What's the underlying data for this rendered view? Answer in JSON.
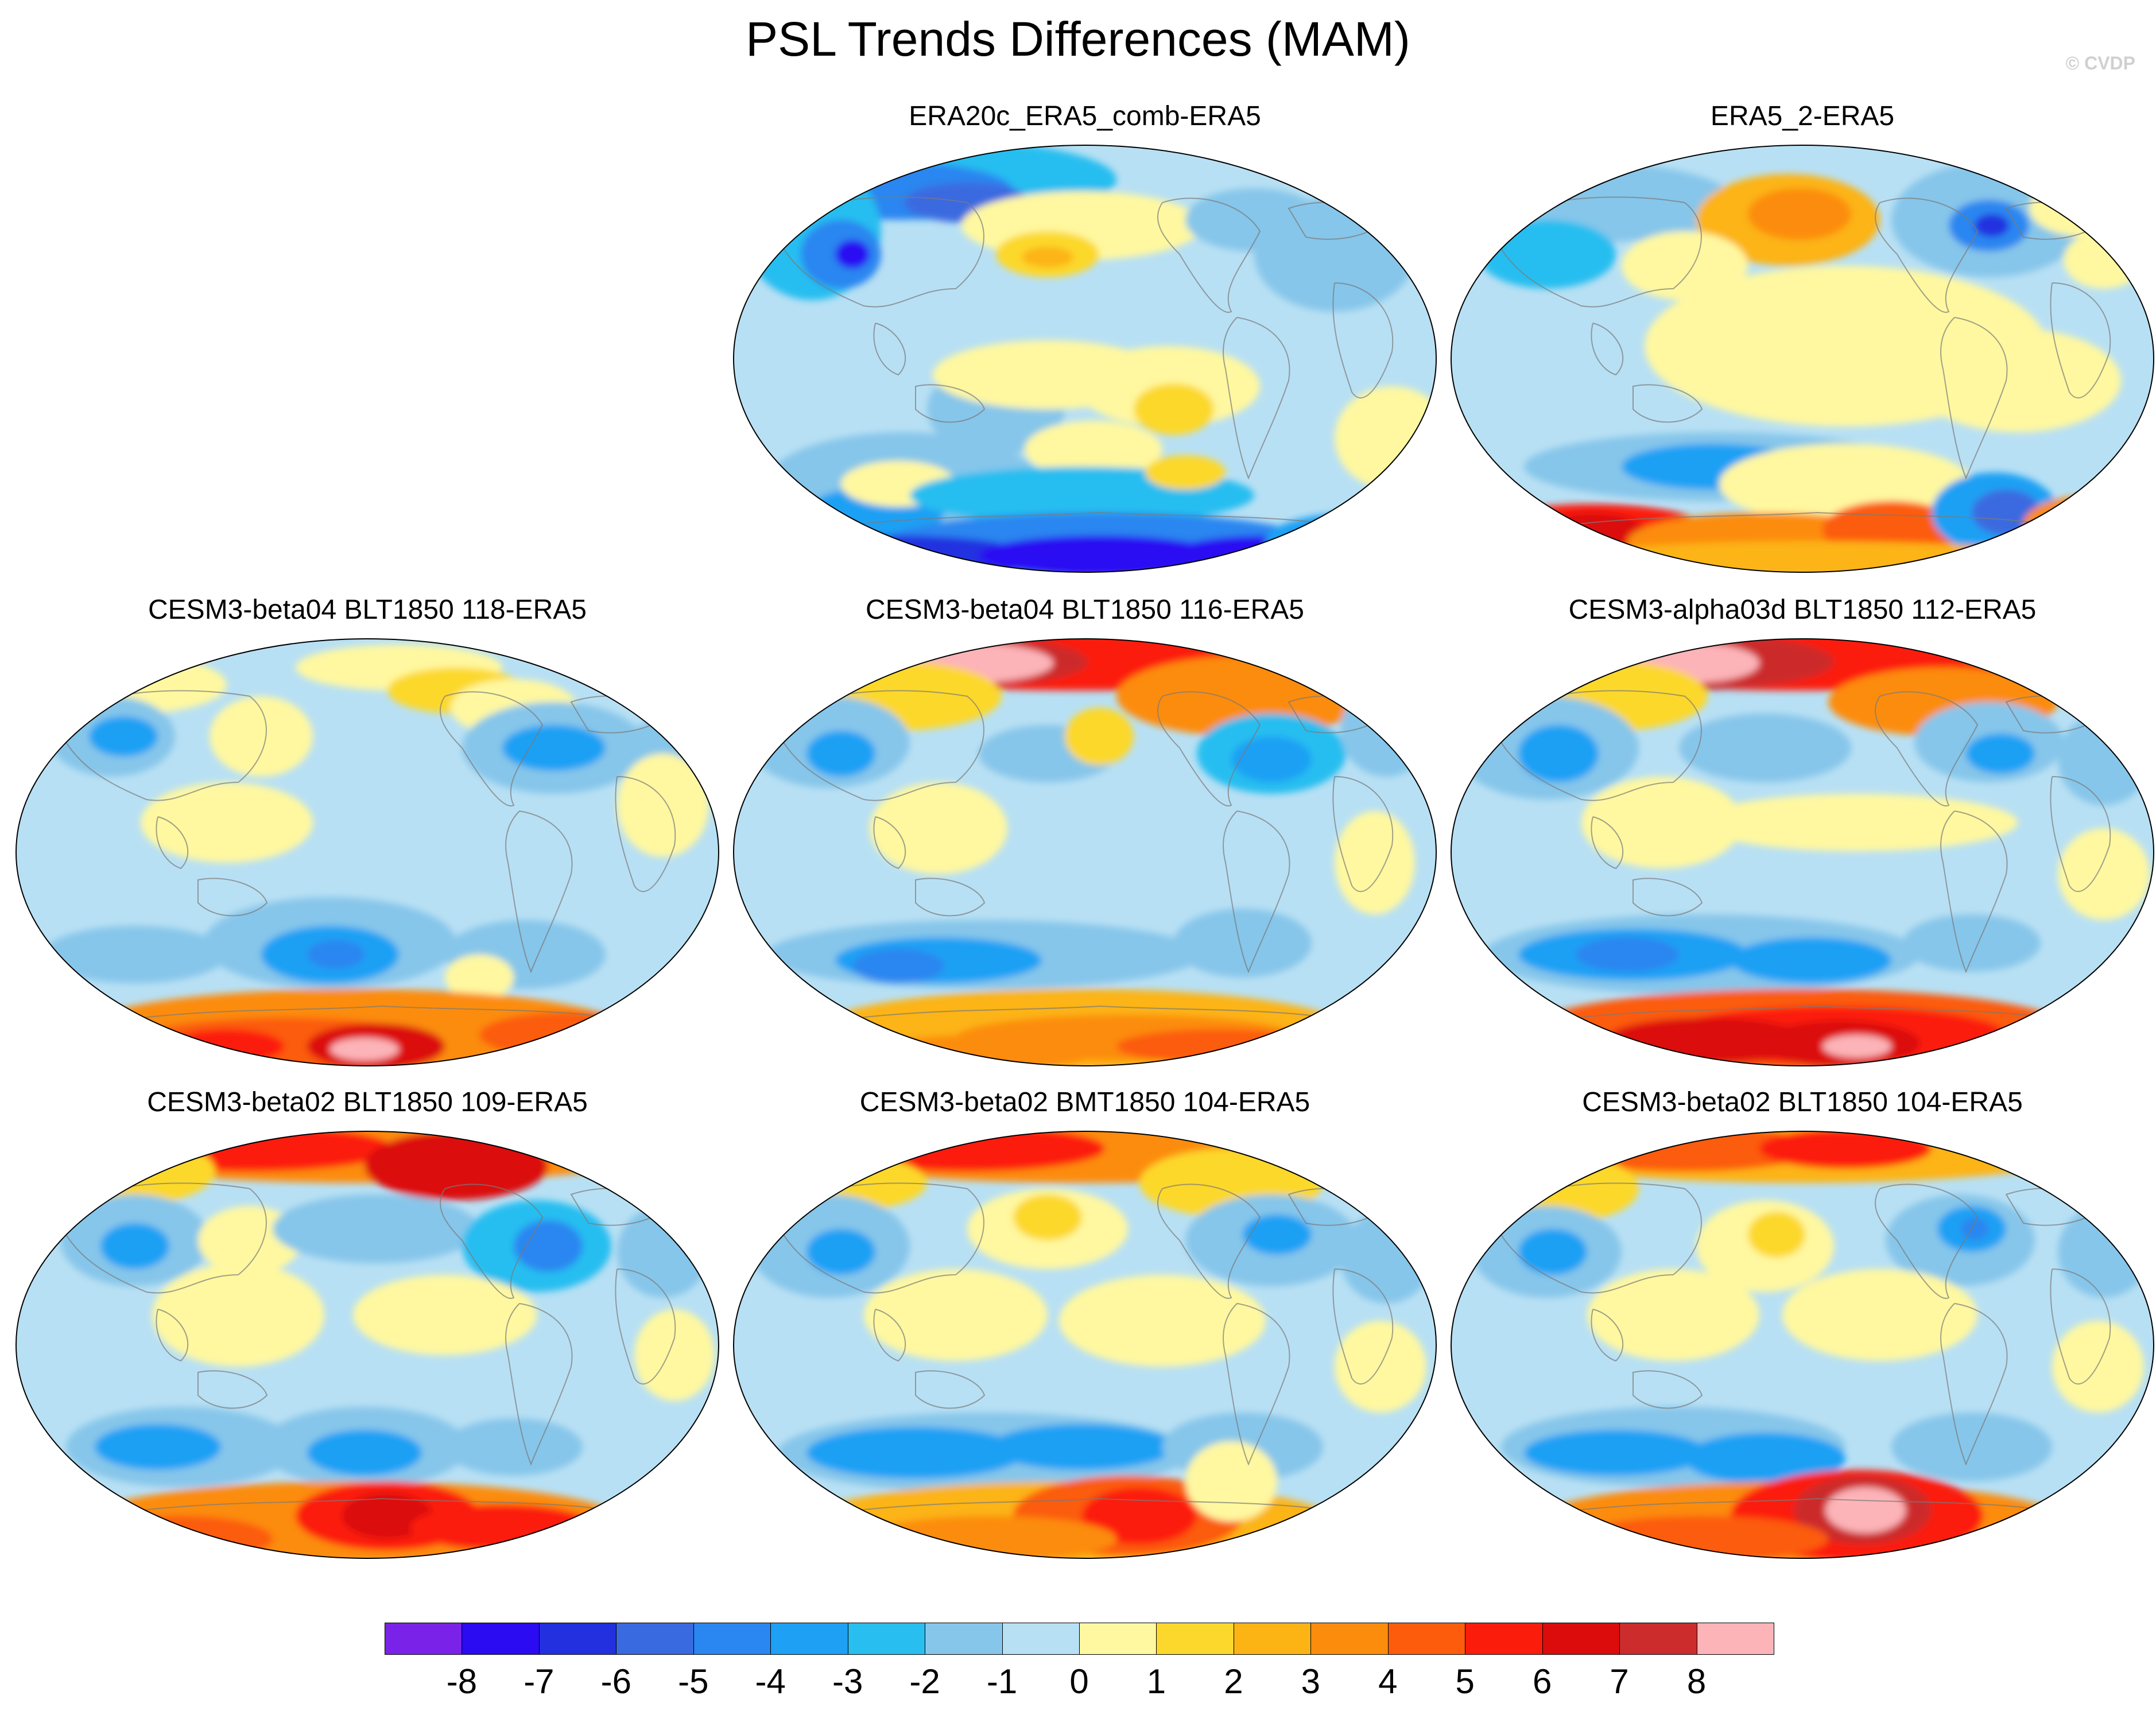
{
  "title": "PSL Trends Differences (MAM)",
  "credit": "© CVDP",
  "panels": [
    {
      "id": "p1",
      "title": "ERA20c_ERA5_comb-ERA5",
      "pattern": "era20c"
    },
    {
      "id": "p2",
      "title": "ERA5_2-ERA5",
      "pattern": "era5_2"
    },
    {
      "id": "p3",
      "title": "CESM3-beta04 BLT1850 118-ERA5",
      "pattern": "model_a"
    },
    {
      "id": "p4",
      "title": "CESM3-beta04 BLT1850 116-ERA5",
      "pattern": "model_b"
    },
    {
      "id": "p5",
      "title": "CESM3-alpha03d BLT1850 112-ERA5",
      "pattern": "model_c"
    },
    {
      "id": "p6",
      "title": "CESM3-beta02 BLT1850 109-ERA5",
      "pattern": "model_d"
    },
    {
      "id": "p7",
      "title": "CESM3-beta02 BMT1850 104-ERA5",
      "pattern": "model_e"
    },
    {
      "id": "p8",
      "title": "CESM3-beta02 BLT1850 104-ERA5",
      "pattern": "model_f"
    }
  ],
  "colorbar": {
    "labels": [
      "-8",
      "-7",
      "-6",
      "-5",
      "-4",
      "-3",
      "-2",
      "-1",
      "0",
      "1",
      "2",
      "3",
      "4",
      "5",
      "6",
      "7",
      "8"
    ],
    "colors": [
      "#7b22e8",
      "#2a0bf2",
      "#2230e0",
      "#3a6ae0",
      "#2a86f0",
      "#1ea0f4",
      "#28bef0",
      "#86c6ea",
      "#b8e0f4",
      "#fff8a0",
      "#fcd82c",
      "#fcb414",
      "#fc8c0c",
      "#fc5c0c",
      "#fc1c0c",
      "#dc0c0c",
      "#cc2c2c",
      "#fcb4b8"
    ]
  }
}
